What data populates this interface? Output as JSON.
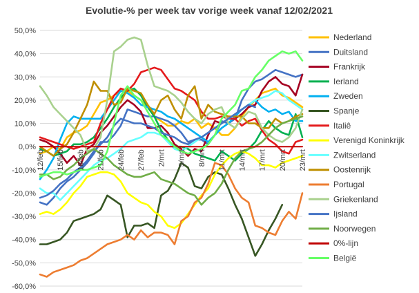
{
  "chart_data": {
    "type": "line",
    "title": "Evolutie-% per week tav vorige week vanaf 12/02/2021",
    "xlabel": "",
    "ylabel": "",
    "ylim": [
      -60,
      50
    ],
    "y_ticks": [
      50,
      40,
      30,
      20,
      10,
      0,
      -10,
      -20,
      -30,
      -40,
      -50,
      -60
    ],
    "y_tick_labels": [
      "50,0%",
      "40,0%",
      "30,0%",
      "20,0%",
      "10,0%",
      "0,0%",
      "-10,0%",
      "-20,0%",
      "-30,0%",
      "-40,0%",
      "-50,0%",
      "-60,0%"
    ],
    "grid": true,
    "legend_position": "right",
    "x": [
      "12/feb",
      "13/feb",
      "14/feb",
      "15/feb",
      "16/feb",
      "17/feb",
      "18/feb",
      "19/feb",
      "20/feb",
      "21/feb",
      "22/feb",
      "23/feb",
      "24/feb",
      "25/feb",
      "26/feb",
      "27/feb",
      "28/feb",
      "1/mrt",
      "2/mrt",
      "3/mrt",
      "4/mrt",
      "5/mrt",
      "6/mrt",
      "7/mrt",
      "8/mrt",
      "9/mrt",
      "10/mrt",
      "11/mrt",
      "12/mrt",
      "13/mrt",
      "14/mrt",
      "15/mrt",
      "16/mrt",
      "17/mrt",
      "18/mrt",
      "19/mrt",
      "20/mrt",
      "21/mrt",
      "22/mrt",
      "23/mrt"
    ],
    "x_tick_labels": [
      "12/feb",
      "15/feb",
      "18/feb",
      "21/feb",
      "24/feb",
      "27/feb",
      "2/mrt",
      "5/mrt",
      "8/mrt",
      "11/mrt",
      "14/mrt",
      "17/mrt",
      "20/mrt",
      "23/mrt"
    ],
    "series": [
      {
        "name": "Nederland",
        "color": "#FFC000",
        "values": [
          -3,
          -2,
          0,
          -1,
          4,
          6,
          7,
          9,
          14,
          19,
          20,
          22,
          24,
          24,
          22,
          20,
          17,
          13,
          11,
          9,
          9,
          11,
          10,
          12,
          8,
          10,
          8,
          5,
          5,
          8,
          13,
          17,
          20,
          23,
          24,
          25,
          22,
          21,
          19,
          17
        ]
      },
      {
        "name": "Duitsland",
        "color": "#4472C4",
        "values": [
          -24,
          -25,
          -22,
          -18,
          -15,
          -13,
          -10,
          -7,
          -3,
          2,
          2,
          5,
          9,
          16,
          15,
          14,
          13,
          13,
          12,
          11,
          9,
          6,
          2,
          3,
          3,
          1,
          5,
          11,
          10,
          12,
          20,
          25,
          28,
          29,
          31,
          33,
          32,
          31,
          30,
          31
        ]
      },
      {
        "name": "Frankrijk",
        "color": "#A50021",
        "values": [
          3,
          2,
          0,
          -3,
          -7,
          -4,
          -8,
          -1,
          1,
          6,
          9,
          13,
          17,
          20,
          18,
          15,
          8,
          8,
          9,
          6,
          1,
          -1,
          -4,
          -1,
          -2,
          5,
          11,
          10,
          12,
          12,
          14,
          17,
          18,
          24,
          28,
          30,
          27,
          26,
          22,
          31
        ]
      },
      {
        "name": "Ierland",
        "color": "#00B050",
        "values": [
          -1,
          -2,
          -4,
          -3,
          -2,
          1,
          1,
          2,
          4,
          8,
          12,
          17,
          21,
          24,
          25,
          22,
          17,
          13,
          7,
          3,
          0,
          0,
          -1,
          -3,
          -4,
          -5,
          -6,
          -2,
          -4,
          -6,
          -3,
          -1,
          2,
          7,
          11,
          8,
          6,
          5,
          14,
          4
        ]
      },
      {
        "name": "Zweden",
        "color": "#00B0F0",
        "values": [
          -14,
          -10,
          -5,
          3,
          10,
          13,
          12,
          12,
          12,
          12,
          16,
          20,
          24,
          23,
          21,
          18,
          17,
          16,
          15,
          13,
          12,
          10,
          8,
          6,
          4,
          2,
          5,
          8,
          10,
          13,
          16,
          18,
          20,
          17,
          15,
          16,
          14,
          15,
          11,
          11
        ]
      },
      {
        "name": "Spanje",
        "color": "#375623",
        "values": [
          -42,
          -42,
          -41,
          -40,
          -37,
          -32,
          -31,
          -30,
          -29,
          -27,
          -21,
          -23,
          -25,
          -39,
          -34,
          -34,
          -33,
          -35,
          -21,
          -19,
          -14,
          -7,
          -9,
          -17,
          -18,
          -13,
          -11,
          -12,
          -18,
          -25,
          -31,
          -39,
          -47,
          -42,
          -36,
          -31,
          -25,
          null,
          null,
          null
        ]
      },
      {
        "name": "Italiê",
        "color": "#E41A1C",
        "values": [
          4,
          3,
          2,
          1,
          0,
          -1,
          0,
          1,
          2,
          10,
          16,
          22,
          25,
          24,
          27,
          32,
          33,
          34,
          33,
          29,
          25,
          24,
          22,
          20,
          15,
          12,
          12,
          13,
          12,
          12,
          9,
          11,
          12,
          7,
          3,
          1,
          -2,
          -3,
          2,
          3
        ]
      },
      {
        "name": "Verenigd Koninkrijk",
        "color": "#FFFF00",
        "values": [
          -29,
          -28,
          -29,
          -27,
          -24,
          -20,
          -17,
          -13,
          -12,
          -11,
          -11,
          -12,
          -15,
          -20,
          -22,
          -24,
          -25,
          -28,
          -30,
          -34,
          -35,
          -33,
          -29,
          -25,
          -21,
          -18,
          -12,
          -8,
          -5,
          -3,
          -2,
          -3,
          -5,
          -8,
          -8,
          -9,
          -7,
          -6,
          -5,
          -4
        ]
      },
      {
        "name": "Zwitserland",
        "color": "#66FFFF",
        "values": [
          -18,
          -20,
          -20,
          -23,
          -20,
          -17,
          -14,
          -11,
          -8,
          -6,
          -5,
          -3,
          -1,
          2,
          3,
          4,
          6,
          6,
          5,
          2,
          -1,
          -2,
          0,
          2,
          4,
          6,
          8,
          10,
          12,
          14,
          16,
          18,
          20,
          21,
          22,
          24,
          23,
          20,
          18,
          16
        ]
      },
      {
        "name": "Oostenrijk",
        "color": "#BF8F00",
        "values": [
          0,
          -2,
          -4,
          -1,
          1,
          6,
          12,
          18,
          28,
          24,
          24,
          18,
          19,
          25,
          24,
          23,
          18,
          14,
          20,
          22,
          16,
          12,
          22,
          26,
          12,
          18,
          15,
          14,
          13,
          13,
          13,
          10,
          10,
          8,
          8,
          12,
          10,
          11,
          13,
          14
        ]
      },
      {
        "name": "Portugal",
        "color": "#ED7D31",
        "values": [
          -55,
          -56,
          -54,
          -53,
          -52,
          -51,
          -49,
          -48,
          -46,
          -44,
          -42,
          -41,
          -40,
          -38,
          -40,
          -36,
          -39,
          -37,
          -37,
          -38,
          -42,
          -32,
          -30,
          -24,
          -22,
          -16,
          -7,
          -8,
          -12,
          -18,
          -22,
          -24,
          -34,
          -35,
          -37,
          -38,
          -32,
          -28,
          -31,
          -20
        ]
      },
      {
        "name": "Griekenland",
        "color": "#A9D18E",
        "values": [
          26,
          22,
          17,
          14,
          11,
          8,
          5,
          -2,
          -1,
          4,
          20,
          41,
          43,
          46,
          47,
          46,
          35,
          26,
          25,
          24,
          22,
          19,
          15,
          12,
          10,
          14,
          16,
          17,
          10,
          8,
          12,
          15,
          14,
          8,
          5,
          3,
          2,
          4,
          8,
          16
        ]
      },
      {
        "name": "Ijsland",
        "color": "#4472C4",
        "values": [
          -22,
          -21,
          -19,
          -16,
          -14,
          -11,
          -9,
          -6,
          -2,
          1,
          4,
          9,
          12,
          11,
          10,
          10,
          9,
          8,
          6,
          5,
          4,
          2,
          1,
          3,
          4,
          6,
          8,
          10,
          12,
          14,
          16,
          18,
          17,
          null,
          null,
          null,
          null,
          null,
          null,
          null
        ]
      },
      {
        "name": "Noorwegen",
        "color": "#70AD47",
        "values": [
          -12,
          -12,
          -14,
          -13,
          -10,
          -8,
          -5,
          -3,
          -1,
          -3,
          -5,
          -8,
          -10,
          -12,
          -13,
          -13,
          -12,
          -11,
          -14,
          -15,
          -16,
          -18,
          -20,
          -21,
          -25,
          -22,
          -20,
          -16,
          -10,
          -5,
          -2,
          -1,
          0,
          2,
          5,
          8,
          10,
          11,
          12,
          13
        ]
      },
      {
        "name": "0%-lijn",
        "color": "#C00000",
        "values": [
          0,
          0,
          0,
          0,
          0,
          0,
          0,
          0,
          0,
          0,
          0,
          0,
          0,
          0,
          0,
          0,
          0,
          0,
          0,
          0,
          0,
          0,
          0,
          0,
          0,
          0,
          0,
          0,
          0,
          0,
          0,
          0,
          0,
          0,
          0,
          0,
          0,
          0,
          0,
          0
        ]
      },
      {
        "name": "België",
        "color": "#66FF66",
        "values": [
          -13,
          -12,
          -11,
          -11,
          -12,
          -11,
          -10,
          -10,
          -9,
          -8,
          -2,
          10,
          22,
          26,
          22,
          20,
          15,
          10,
          5,
          3,
          0,
          -2,
          -3,
          -2,
          -1,
          1,
          5,
          12,
          15,
          18,
          24,
          25,
          30,
          33,
          37,
          39,
          41,
          40,
          41,
          37
        ]
      }
    ]
  }
}
